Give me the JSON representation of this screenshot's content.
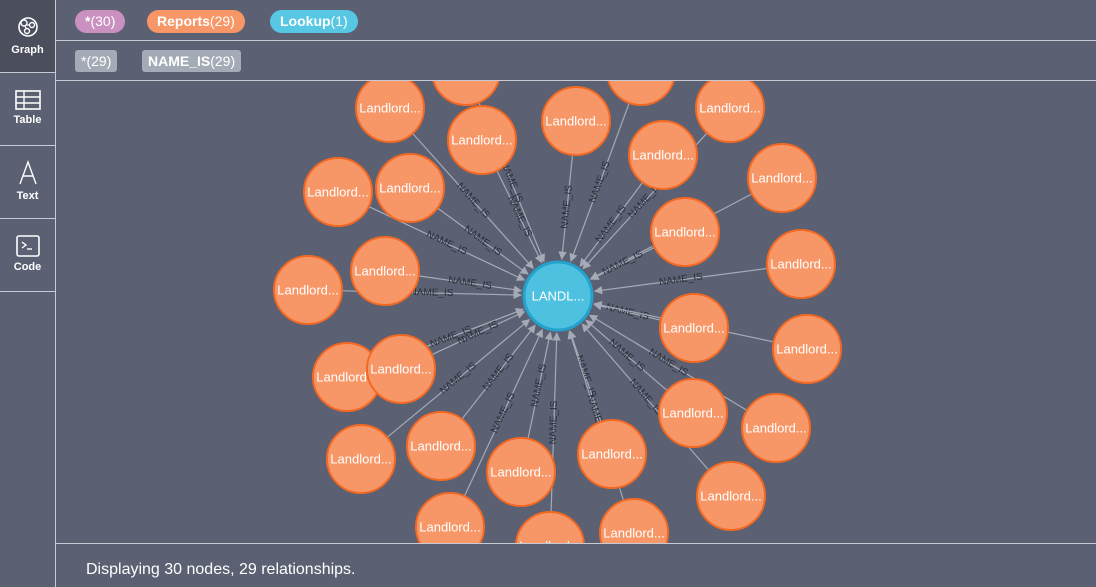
{
  "sidebar": {
    "items": [
      {
        "label": "Graph",
        "icon": "graph-icon"
      },
      {
        "label": "Table",
        "icon": "table-icon"
      },
      {
        "label": "Text",
        "icon": "text-icon"
      },
      {
        "label": "Code",
        "icon": "code-icon"
      }
    ]
  },
  "labels_bar": {
    "items": [
      {
        "name": "*",
        "count": "(30)",
        "color": "#c990c0"
      },
      {
        "name": "Reports",
        "count": "(29)",
        "color": "#f79767"
      },
      {
        "name": "Lookup",
        "count": "(1)",
        "color": "#57c7e3"
      }
    ]
  },
  "rels_bar": {
    "items": [
      {
        "name": "*",
        "count": "(29)"
      },
      {
        "name": "NAME_IS",
        "count": "(29)"
      }
    ]
  },
  "graph": {
    "center": {
      "caption": "LANDL...",
      "color": "#4fc1e0",
      "stroke": "#23a2ce"
    },
    "node_caption": "Landlord...",
    "node_color": "#f79767",
    "node_stroke": "#f36924",
    "relationship_label": "NAME_IS"
  },
  "footer": {
    "status": "Displaying 30 nodes, 29 relationships."
  }
}
